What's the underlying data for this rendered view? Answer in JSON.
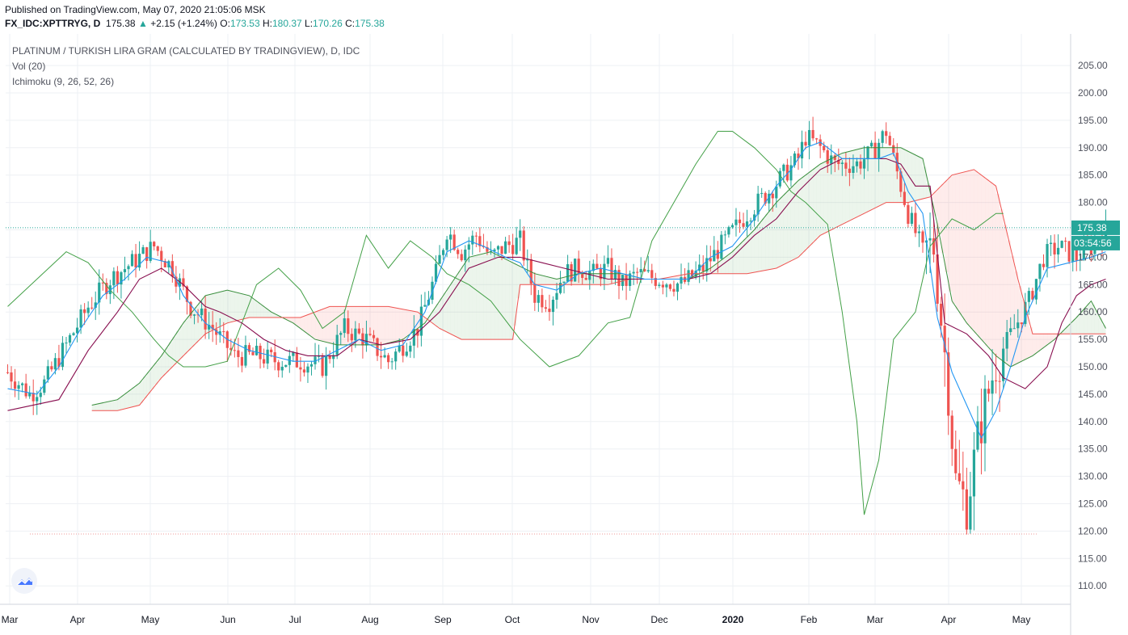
{
  "header": {
    "published": "Published on TradingView.com, May 07, 2020 21:05:06 MSK",
    "symbol": "FX_IDC:XPTTRYG, D",
    "last": "175.38",
    "change": "+2.15 (+1.24%)",
    "o_label": "O:",
    "o_value": "173.53",
    "h_label": "H:",
    "h_value": "180.37",
    "l_label": "L:",
    "l_value": "170.26",
    "c_label": "C:",
    "c_value": "175.38"
  },
  "legend": {
    "title": "PLATINUM / TURKISH LIRA GRAM (CALCULATED BY TRADINGVIEW), D, IDC",
    "volume": "Vol (20)",
    "ichimoku": "Ichimoku (9, 26, 52, 26)"
  },
  "price_label": "175.38",
  "countdown_label": "03:54:56",
  "colors": {
    "up": "#26a69a",
    "down": "#ef5350",
    "tenkan": "#2196f3",
    "kijun": "#880e4f",
    "chikou": "#43a047",
    "spanA": "#388e3c",
    "spanB": "#ef5350",
    "cloudUp": "rgba(67,160,71,0.10)",
    "cloudDown": "rgba(244,67,54,0.10)",
    "priceLine": "#26a69a"
  },
  "logo_icon": "tradingview-cloud-icon",
  "chart_data": {
    "type": "candlestick",
    "yticks": [
      "205.00",
      "200.00",
      "195.00",
      "190.00",
      "185.00",
      "180.00",
      "175.00",
      "170.00",
      "165.00",
      "160.00",
      "155.00",
      "150.00",
      "145.00",
      "140.00",
      "135.00",
      "130.00",
      "125.00",
      "120.00",
      "115.00",
      "110.00"
    ],
    "ylim": [
      104.5,
      209
    ],
    "xticks": [
      "Mar",
      "Apr",
      "May",
      "Jun",
      "Jul",
      "Aug",
      "Sep",
      "Oct",
      "Nov",
      "Dec",
      "2020",
      "Feb",
      "Mar",
      "Apr",
      "May"
    ],
    "bold_xtick": "2020",
    "last_price": 175.38,
    "anchors": [
      [
        0,
        149
      ],
      [
        6,
        145
      ],
      [
        10,
        147
      ],
      [
        16,
        154
      ],
      [
        22,
        161
      ],
      [
        28,
        166
      ],
      [
        34,
        169
      ],
      [
        40,
        172
      ],
      [
        45,
        168
      ],
      [
        50,
        161
      ],
      [
        56,
        157
      ],
      [
        62,
        152
      ],
      [
        68,
        152
      ],
      [
        74,
        151
      ],
      [
        80,
        151
      ],
      [
        86,
        150
      ],
      [
        92,
        157
      ],
      [
        98,
        155
      ],
      [
        104,
        151
      ],
      [
        108,
        154
      ],
      [
        112,
        157
      ],
      [
        117,
        167
      ],
      [
        120,
        175
      ],
      [
        124,
        171
      ],
      [
        128,
        174
      ],
      [
        132,
        170
      ],
      [
        136,
        172
      ],
      [
        140,
        173
      ],
      [
        144,
        163
      ],
      [
        148,
        162
      ],
      [
        152,
        167
      ],
      [
        156,
        168
      ],
      [
        160,
        167
      ],
      [
        164,
        168
      ],
      [
        168,
        165
      ],
      [
        172,
        167
      ],
      [
        178,
        166
      ],
      [
        184,
        165
      ],
      [
        190,
        168
      ],
      [
        196,
        173
      ],
      [
        202,
        178
      ],
      [
        208,
        182
      ],
      [
        212,
        185
      ],
      [
        216,
        188
      ],
      [
        218,
        192
      ],
      [
        222,
        190
      ],
      [
        226,
        187
      ],
      [
        232,
        187
      ],
      [
        236,
        189
      ],
      [
        240,
        193
      ],
      [
        244,
        183
      ],
      [
        246,
        178
      ],
      [
        250,
        171
      ],
      [
        253,
        172
      ],
      [
        257,
        146
      ],
      [
        259,
        129
      ],
      [
        262,
        125
      ],
      [
        266,
        140
      ],
      [
        270,
        151
      ],
      [
        275,
        157
      ],
      [
        279,
        162
      ],
      [
        283,
        170
      ],
      [
        287,
        172
      ],
      [
        292,
        170
      ],
      [
        296,
        172
      ],
      [
        300,
        175
      ]
    ],
    "tenkan": [
      [
        0,
        146
      ],
      [
        8,
        145
      ],
      [
        14,
        150
      ],
      [
        20,
        157
      ],
      [
        26,
        163
      ],
      [
        32,
        166
      ],
      [
        38,
        170
      ],
      [
        44,
        169
      ],
      [
        48,
        163
      ],
      [
        54,
        158
      ],
      [
        60,
        155
      ],
      [
        66,
        153
      ],
      [
        72,
        152
      ],
      [
        78,
        151
      ],
      [
        84,
        151
      ],
      [
        90,
        153
      ],
      [
        96,
        155
      ],
      [
        102,
        153
      ],
      [
        108,
        154
      ],
      [
        114,
        160
      ],
      [
        120,
        171
      ],
      [
        126,
        173
      ],
      [
        130,
        172
      ],
      [
        136,
        170
      ],
      [
        140,
        169
      ],
      [
        144,
        165
      ],
      [
        150,
        164
      ],
      [
        156,
        167
      ],
      [
        162,
        168
      ],
      [
        168,
        167
      ],
      [
        174,
        166
      ],
      [
        180,
        166
      ],
      [
        186,
        166
      ],
      [
        192,
        170
      ],
      [
        198,
        172
      ],
      [
        204,
        177
      ],
      [
        210,
        183
      ],
      [
        214,
        186
      ],
      [
        218,
        190
      ],
      [
        222,
        191
      ],
      [
        228,
        188
      ],
      [
        234,
        188
      ],
      [
        238,
        188
      ],
      [
        242,
        189
      ],
      [
        246,
        182
      ],
      [
        250,
        178
      ],
      [
        254,
        159
      ],
      [
        258,
        149
      ],
      [
        262,
        143
      ],
      [
        266,
        137
      ],
      [
        270,
        142
      ],
      [
        274,
        150
      ],
      [
        278,
        159
      ],
      [
        284,
        168
      ],
      [
        290,
        169
      ],
      [
        296,
        170
      ],
      [
        300,
        171
      ]
    ],
    "kijun": [
      [
        0,
        142
      ],
      [
        14,
        144
      ],
      [
        22,
        153
      ],
      [
        30,
        160
      ],
      [
        36,
        166
      ],
      [
        42,
        168
      ],
      [
        48,
        165
      ],
      [
        54,
        161
      ],
      [
        58,
        160
      ],
      [
        64,
        158
      ],
      [
        70,
        155
      ],
      [
        76,
        153
      ],
      [
        82,
        152
      ],
      [
        90,
        152
      ],
      [
        96,
        155
      ],
      [
        102,
        154
      ],
      [
        110,
        155
      ],
      [
        118,
        160
      ],
      [
        126,
        168
      ],
      [
        134,
        170
      ],
      [
        140,
        170
      ],
      [
        146,
        169
      ],
      [
        152,
        168
      ],
      [
        158,
        167
      ],
      [
        164,
        166
      ],
      [
        170,
        166
      ],
      [
        178,
        166
      ],
      [
        186,
        166
      ],
      [
        192,
        167
      ],
      [
        198,
        170
      ],
      [
        204,
        174
      ],
      [
        210,
        177
      ],
      [
        216,
        182
      ],
      [
        222,
        186
      ],
      [
        228,
        188
      ],
      [
        234,
        188
      ],
      [
        240,
        188
      ],
      [
        244,
        187
      ],
      [
        248,
        183
      ],
      [
        252,
        183
      ],
      [
        256,
        158
      ],
      [
        262,
        156
      ],
      [
        268,
        152
      ],
      [
        272,
        148
      ],
      [
        278,
        146
      ],
      [
        284,
        150
      ],
      [
        288,
        158
      ],
      [
        292,
        163
      ],
      [
        296,
        165
      ],
      [
        300,
        166
      ]
    ],
    "chikou": [
      [
        0,
        161
      ],
      [
        8,
        166
      ],
      [
        16,
        171
      ],
      [
        22,
        169
      ],
      [
        28,
        164
      ],
      [
        34,
        160
      ],
      [
        40,
        155
      ],
      [
        44,
        152
      ],
      [
        48,
        150
      ],
      [
        54,
        150
      ],
      [
        60,
        151
      ],
      [
        68,
        165
      ],
      [
        74,
        168
      ],
      [
        80,
        164
      ],
      [
        86,
        157
      ],
      [
        92,
        160
      ],
      [
        98,
        174
      ],
      [
        104,
        168
      ],
      [
        110,
        173
      ],
      [
        116,
        170
      ],
      [
        120,
        167
      ],
      [
        126,
        165
      ],
      [
        132,
        162
      ],
      [
        140,
        155
      ],
      [
        148,
        150
      ],
      [
        156,
        152
      ],
      [
        164,
        158
      ],
      [
        170,
        159
      ],
      [
        176,
        173
      ],
      [
        182,
        180
      ],
      [
        188,
        187
      ],
      [
        194,
        193
      ],
      [
        198,
        193
      ],
      [
        204,
        190
      ],
      [
        210,
        186
      ],
      [
        214,
        182
      ],
      [
        218,
        180
      ],
      [
        224,
        176
      ],
      [
        228,
        160
      ],
      [
        232,
        140
      ],
      [
        234,
        123
      ],
      [
        238,
        133
      ],
      [
        242,
        155
      ],
      [
        248,
        160
      ],
      [
        252,
        172
      ],
      [
        258,
        177
      ],
      [
        264,
        175
      ],
      [
        270,
        178
      ],
      [
        272,
        178
      ]
    ],
    "spanA": [
      [
        23,
        143
      ],
      [
        30,
        144
      ],
      [
        36,
        147
      ],
      [
        42,
        152
      ],
      [
        48,
        158
      ],
      [
        54,
        163
      ],
      [
        60,
        164
      ],
      [
        66,
        163
      ],
      [
        72,
        160
      ],
      [
        78,
        158
      ],
      [
        84,
        155
      ],
      [
        90,
        154
      ],
      [
        96,
        154
      ],
      [
        102,
        154
      ],
      [
        108,
        155
      ],
      [
        114,
        158
      ],
      [
        120,
        164
      ],
      [
        126,
        170
      ],
      [
        132,
        171
      ],
      [
        138,
        169
      ],
      [
        144,
        167
      ],
      [
        150,
        166
      ],
      [
        156,
        167
      ],
      [
        162,
        167
      ],
      [
        168,
        167
      ],
      [
        174,
        166
      ],
      [
        180,
        166
      ],
      [
        186,
        166
      ],
      [
        192,
        168
      ],
      [
        198,
        171
      ],
      [
        204,
        175
      ],
      [
        210,
        180
      ],
      [
        216,
        184
      ],
      [
        222,
        187
      ],
      [
        228,
        189
      ],
      [
        234,
        190
      ],
      [
        238,
        190
      ],
      [
        244,
        190
      ],
      [
        250,
        188
      ],
      [
        254,
        176
      ],
      [
        258,
        162
      ],
      [
        262,
        158
      ],
      [
        266,
        155
      ],
      [
        270,
        152
      ],
      [
        274,
        150
      ],
      [
        280,
        152
      ],
      [
        286,
        155
      ],
      [
        292,
        159
      ],
      [
        296,
        162
      ],
      [
        300,
        157
      ]
    ],
    "spanB": [
      [
        23,
        142
      ],
      [
        30,
        142
      ],
      [
        36,
        143
      ],
      [
        42,
        148
      ],
      [
        48,
        152
      ],
      [
        54,
        156
      ],
      [
        60,
        158
      ],
      [
        66,
        159
      ],
      [
        72,
        159
      ],
      [
        80,
        159
      ],
      [
        88,
        161
      ],
      [
        96,
        161
      ],
      [
        104,
        161
      ],
      [
        112,
        160
      ],
      [
        118,
        157
      ],
      [
        124,
        155
      ],
      [
        132,
        155
      ],
      [
        138,
        155
      ],
      [
        140,
        165
      ],
      [
        146,
        165
      ],
      [
        152,
        165
      ],
      [
        158,
        165
      ],
      [
        164,
        165
      ],
      [
        170,
        166
      ],
      [
        178,
        166
      ],
      [
        186,
        167
      ],
      [
        194,
        167
      ],
      [
        202,
        167
      ],
      [
        210,
        168
      ],
      [
        216,
        170
      ],
      [
        222,
        174
      ],
      [
        228,
        176
      ],
      [
        234,
        178
      ],
      [
        240,
        180
      ],
      [
        246,
        180
      ],
      [
        252,
        181
      ],
      [
        258,
        185
      ],
      [
        264,
        186
      ],
      [
        270,
        183
      ],
      [
        276,
        166
      ],
      [
        280,
        156
      ],
      [
        286,
        156
      ],
      [
        292,
        156
      ],
      [
        300,
        156
      ]
    ]
  }
}
